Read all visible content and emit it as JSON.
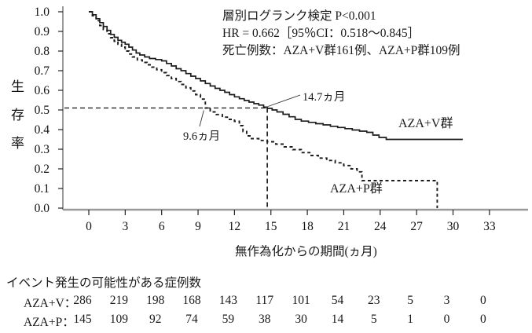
{
  "chart_data": {
    "type": "line",
    "subtype": "kaplan-meier-step",
    "ylabel": "生存率",
    "xlabel": "無作為化からの期間(ヵ月)",
    "xlim": [
      0,
      33
    ],
    "ylim": [
      0.0,
      1.0
    ],
    "x_ticks": [
      0,
      3,
      6,
      9,
      12,
      15,
      18,
      21,
      24,
      27,
      30,
      33
    ],
    "y_ticks": [
      1.0,
      0.9,
      0.8,
      0.7,
      0.6,
      0.5,
      0.4,
      0.3,
      0.2,
      0.1,
      0.0
    ],
    "grid": false,
    "annotations": {
      "line1": "層別ログランク検定 P<0.001",
      "line2": "HR = 0.662［95％CI：0.518～0.845］",
      "line3": "死亡例数：AZA+V群161例、AZA+P群109例",
      "median_v_label": "14.7ヵ月",
      "median_p_label": "9.6ヵ月"
    },
    "medians": {
      "aza_v_months": 14.7,
      "aza_p_months": 9.6,
      "survival_at_median": 0.51
    },
    "series": [
      {
        "name": "AZA+V群",
        "style": "solid",
        "points": [
          [
            0,
            1.0
          ],
          [
            0.3,
            0.985
          ],
          [
            0.6,
            0.965
          ],
          [
            0.9,
            0.945
          ],
          [
            1.2,
            0.925
          ],
          [
            1.5,
            0.905
          ],
          [
            1.8,
            0.885
          ],
          [
            2.1,
            0.87
          ],
          [
            2.4,
            0.855
          ],
          [
            2.7,
            0.845
          ],
          [
            3.0,
            0.835
          ],
          [
            3.3,
            0.82
          ],
          [
            3.6,
            0.805
          ],
          [
            3.9,
            0.79
          ],
          [
            4.2,
            0.78
          ],
          [
            4.6,
            0.77
          ],
          [
            5.0,
            0.762
          ],
          [
            5.5,
            0.757
          ],
          [
            6.0,
            0.75
          ],
          [
            6.4,
            0.737
          ],
          [
            6.8,
            0.724
          ],
          [
            7.2,
            0.71
          ],
          [
            7.6,
            0.7
          ],
          [
            8.0,
            0.685
          ],
          [
            8.4,
            0.672
          ],
          [
            8.8,
            0.66
          ],
          [
            9.2,
            0.648
          ],
          [
            9.6,
            0.635
          ],
          [
            10.0,
            0.622
          ],
          [
            10.4,
            0.61
          ],
          [
            10.8,
            0.6
          ],
          [
            11.2,
            0.59
          ],
          [
            11.6,
            0.578
          ],
          [
            12.0,
            0.567
          ],
          [
            12.4,
            0.557
          ],
          [
            12.8,
            0.548
          ],
          [
            13.2,
            0.54
          ],
          [
            13.6,
            0.532
          ],
          [
            14.0,
            0.525
          ],
          [
            14.4,
            0.515
          ],
          [
            14.7,
            0.508
          ],
          [
            15.1,
            0.5
          ],
          [
            15.5,
            0.49
          ],
          [
            16.0,
            0.478
          ],
          [
            16.5,
            0.465
          ],
          [
            17.0,
            0.452
          ],
          [
            17.5,
            0.443
          ],
          [
            18.1,
            0.437
          ],
          [
            18.7,
            0.43
          ],
          [
            19.3,
            0.424
          ],
          [
            19.9,
            0.417
          ],
          [
            20.5,
            0.411
          ],
          [
            21.1,
            0.405
          ],
          [
            21.7,
            0.398
          ],
          [
            22.3,
            0.392
          ],
          [
            22.9,
            0.386
          ],
          [
            23.4,
            0.372
          ],
          [
            23.9,
            0.36
          ],
          [
            24.5,
            0.35
          ],
          [
            30.8,
            0.35
          ]
        ]
      },
      {
        "name": "AZA+P群",
        "style": "dashed",
        "points": [
          [
            0,
            1.0
          ],
          [
            0.3,
            0.98
          ],
          [
            0.6,
            0.955
          ],
          [
            0.9,
            0.93
          ],
          [
            1.2,
            0.91
          ],
          [
            1.5,
            0.888
          ],
          [
            1.8,
            0.868
          ],
          [
            2.1,
            0.85
          ],
          [
            2.4,
            0.835
          ],
          [
            2.7,
            0.82
          ],
          [
            3.0,
            0.8
          ],
          [
            3.3,
            0.785
          ],
          [
            3.6,
            0.77
          ],
          [
            4.0,
            0.755
          ],
          [
            4.4,
            0.742
          ],
          [
            4.8,
            0.73
          ],
          [
            5.2,
            0.718
          ],
          [
            5.6,
            0.705
          ],
          [
            6.0,
            0.69
          ],
          [
            6.4,
            0.675
          ],
          [
            6.8,
            0.66
          ],
          [
            7.2,
            0.645
          ],
          [
            7.6,
            0.63
          ],
          [
            8.0,
            0.613
          ],
          [
            8.4,
            0.597
          ],
          [
            8.8,
            0.578
          ],
          [
            9.2,
            0.555
          ],
          [
            9.6,
            0.51
          ],
          [
            10.0,
            0.49
          ],
          [
            10.5,
            0.477
          ],
          [
            11.0,
            0.463
          ],
          [
            11.5,
            0.452
          ],
          [
            12.0,
            0.442
          ],
          [
            12.4,
            0.42
          ],
          [
            12.7,
            0.39
          ],
          [
            13.0,
            0.368
          ],
          [
            13.4,
            0.354
          ],
          [
            14.0,
            0.345
          ],
          [
            14.7,
            0.338
          ],
          [
            15.4,
            0.326
          ],
          [
            16.1,
            0.312
          ],
          [
            16.8,
            0.298
          ],
          [
            17.5,
            0.283
          ],
          [
            18.2,
            0.268
          ],
          [
            18.9,
            0.255
          ],
          [
            19.6,
            0.243
          ],
          [
            20.3,
            0.231
          ],
          [
            21.0,
            0.217
          ],
          [
            21.6,
            0.2
          ],
          [
            22.1,
            0.185
          ],
          [
            22.5,
            0.14
          ],
          [
            28.7,
            0.14
          ],
          [
            28.7,
            0.0
          ]
        ]
      }
    ]
  },
  "risk_table": {
    "title": "イベント発生の可能性がある症例数",
    "rows": [
      {
        "label": "AZA+V：",
        "values": [
          286,
          219,
          198,
          168,
          143,
          117,
          101,
          54,
          23,
          5,
          3,
          0
        ]
      },
      {
        "label": "AZA+P：",
        "values": [
          145,
          109,
          92,
          74,
          59,
          38,
          30,
          14,
          5,
          1,
          0,
          0
        ]
      }
    ]
  }
}
